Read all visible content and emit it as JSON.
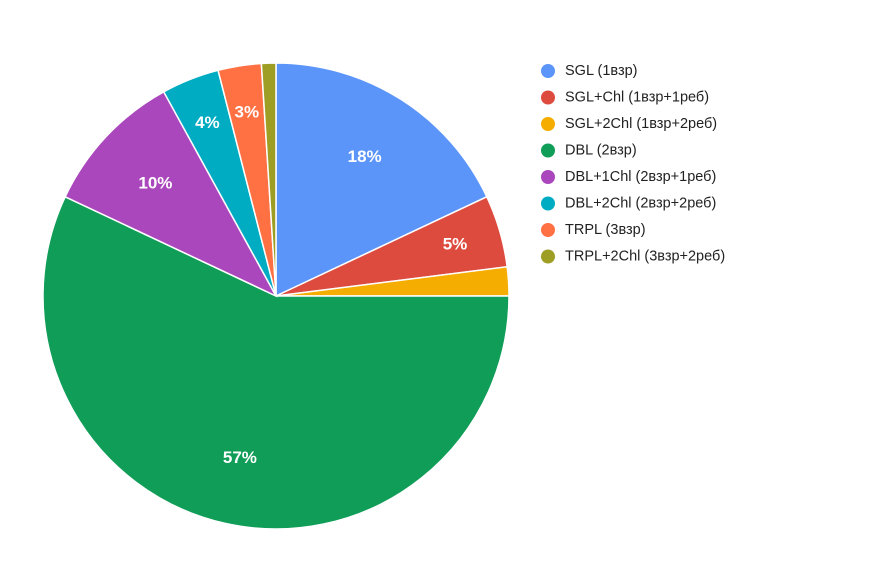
{
  "chart_data": {
    "type": "pie",
    "title": "",
    "legend_position": "right",
    "slices": [
      {
        "name": "SGL (1взр)",
        "value": 18,
        "label": "18%",
        "color": "#5b95f9"
      },
      {
        "name": "SGL+Chl (1взр+1реб)",
        "value": 5,
        "label": "5%",
        "color": "#dd4b3e"
      },
      {
        "name": "SGL+2Chl (1взр+2реб)",
        "value": 2,
        "label": "",
        "color": "#f4ad00"
      },
      {
        "name": "DBL (2взр)",
        "value": 57,
        "label": "57%",
        "color": "#0f9d58"
      },
      {
        "name": "DBL+1Chl (2взр+1реб)",
        "value": 10,
        "label": "10%",
        "color": "#ab47bc"
      },
      {
        "name": "DBL+2Chl (2взр+2реб)",
        "value": 4,
        "label": "4%",
        "color": "#00acc1"
      },
      {
        "name": "TRPL (3взр)",
        "value": 3,
        "label": "3%",
        "color": "#ff7043"
      },
      {
        "name": "TRPL+2Chl (3взр+2реб)",
        "value": 1,
        "label": "",
        "color": "#9e9d24"
      }
    ]
  }
}
